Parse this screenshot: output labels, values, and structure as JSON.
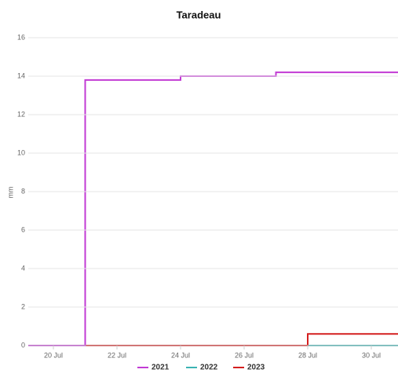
{
  "chart_data": {
    "type": "step",
    "title": "Taradeau",
    "ylabel": "mm",
    "categories": [
      "20 Jul",
      null,
      "22 Jul",
      null,
      "24 Jul",
      null,
      "26 Jul",
      null,
      "28 Jul",
      null,
      "30 Jul",
      null
    ],
    "series": [
      {
        "name": "2021",
        "color": "#c23bd4",
        "values": [
          0,
          13.8,
          13.8,
          13.8,
          14.0,
          14.0,
          14.0,
          14.2,
          14.2,
          14.2,
          14.2,
          14.2
        ]
      },
      {
        "name": "2022",
        "color": "#3bb3b3",
        "values": [
          0,
          0,
          0,
          0,
          0,
          0,
          0,
          0,
          0,
          0,
          0,
          0
        ]
      },
      {
        "name": "2023",
        "color": "#d41f1f",
        "values": [
          0,
          0,
          0,
          0,
          0,
          0,
          0,
          0,
          0.6,
          0.6,
          0.6,
          0.6
        ]
      }
    ],
    "ylim": [
      0,
      16
    ],
    "yticks": [
      0,
      2,
      4,
      6,
      8,
      10,
      12,
      14,
      16
    ],
    "grid": true,
    "legend": "bottom"
  }
}
